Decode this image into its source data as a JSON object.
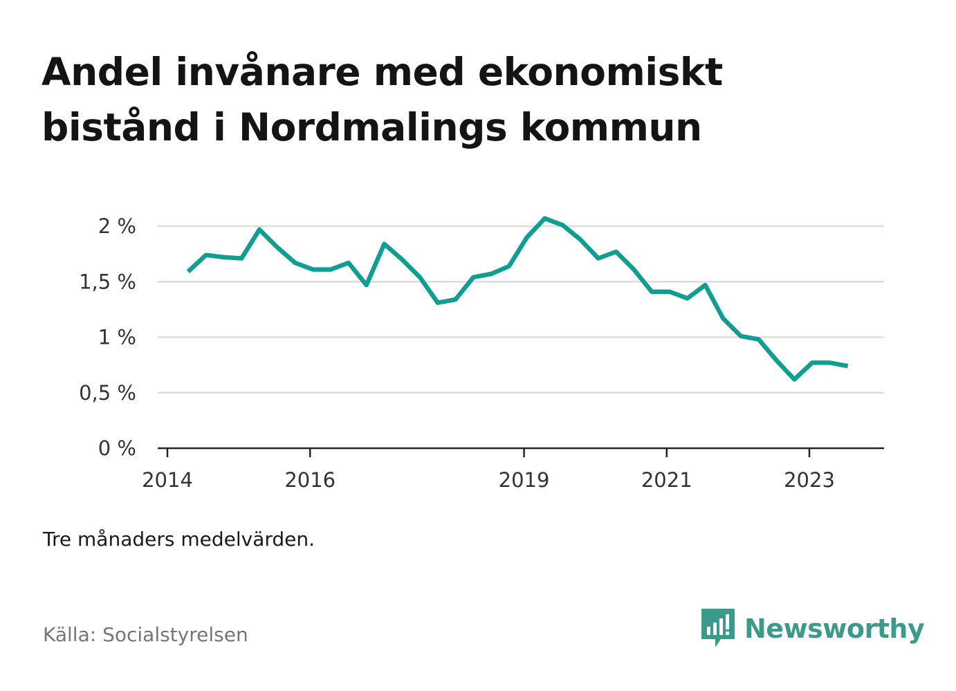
{
  "title": "Andel invånare med ekonomiskt bistånd i Nordmalings kommun",
  "note": "Tre månaders medelvärden.",
  "source": "Källa: Socialstyrelsen",
  "brand": {
    "name": "Newsworthy",
    "color": "#3a9a8c",
    "icon": "bar-chart-speech-bubble-icon"
  },
  "colors": {
    "line": "#109e93",
    "grid": "#dddddd",
    "axis": "#222222",
    "title": "#141414"
  },
  "chart_data": {
    "type": "line",
    "title": "Andel invånare med ekonomiskt bistånd i Nordmalings kommun",
    "xlabel": "",
    "ylabel": "",
    "x_tick_labels": [
      "2014",
      "2016",
      "2019",
      "2021",
      "2023"
    ],
    "x_ticks": [
      2014.0,
      2016.0,
      2019.0,
      2021.0,
      2023.0
    ],
    "y_tick_labels": [
      "0 %",
      "0,5 %",
      "1 %",
      "1,5 %",
      "2 %"
    ],
    "y_ticks": [
      0,
      0.5,
      1,
      1.5,
      2
    ],
    "xlim": [
      2014.0,
      2024.05
    ],
    "ylim": [
      0,
      2.0
    ],
    "grid": true,
    "legend": "none",
    "series": [
      {
        "values": [
          {
            "x": 2014.29,
            "y": 1.59
          },
          {
            "x": 2014.54,
            "y": 1.74
          },
          {
            "x": 2014.79,
            "y": 1.72
          },
          {
            "x": 2015.04,
            "y": 1.71
          },
          {
            "x": 2015.29,
            "y": 1.97
          },
          {
            "x": 2015.54,
            "y": 1.81
          },
          {
            "x": 2015.79,
            "y": 1.67
          },
          {
            "x": 2016.04,
            "y": 1.61
          },
          {
            "x": 2016.29,
            "y": 1.61
          },
          {
            "x": 2016.54,
            "y": 1.67
          },
          {
            "x": 2016.79,
            "y": 1.47
          },
          {
            "x": 2017.04,
            "y": 1.84
          },
          {
            "x": 2017.29,
            "y": 1.7
          },
          {
            "x": 2017.54,
            "y": 1.54
          },
          {
            "x": 2017.79,
            "y": 1.31
          },
          {
            "x": 2018.04,
            "y": 1.34
          },
          {
            "x": 2018.29,
            "y": 1.54
          },
          {
            "x": 2018.54,
            "y": 1.57
          },
          {
            "x": 2018.79,
            "y": 1.64
          },
          {
            "x": 2019.04,
            "y": 1.9
          },
          {
            "x": 2019.29,
            "y": 2.07
          },
          {
            "x": 2019.54,
            "y": 2.01
          },
          {
            "x": 2019.79,
            "y": 1.88
          },
          {
            "x": 2020.04,
            "y": 1.71
          },
          {
            "x": 2020.29,
            "y": 1.77
          },
          {
            "x": 2020.54,
            "y": 1.61
          },
          {
            "x": 2020.79,
            "y": 1.41
          },
          {
            "x": 2021.04,
            "y": 1.41
          },
          {
            "x": 2021.29,
            "y": 1.35
          },
          {
            "x": 2021.54,
            "y": 1.47
          },
          {
            "x": 2021.79,
            "y": 1.17
          },
          {
            "x": 2022.04,
            "y": 1.01
          },
          {
            "x": 2022.29,
            "y": 0.98
          },
          {
            "x": 2022.54,
            "y": 0.79
          },
          {
            "x": 2022.79,
            "y": 0.62
          },
          {
            "x": 2023.04,
            "y": 0.77
          },
          {
            "x": 2023.29,
            "y": 0.77
          },
          {
            "x": 2023.54,
            "y": 0.74
          }
        ]
      }
    ]
  }
}
